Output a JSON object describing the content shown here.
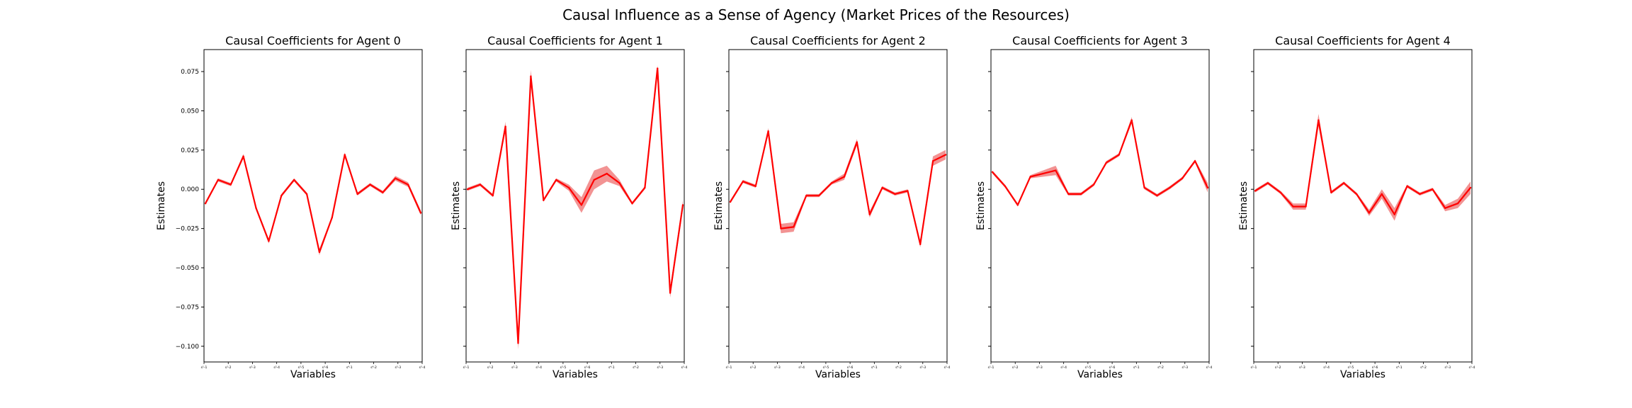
{
  "figure": {
    "title": "Causal Influence as a Sense of Agency (Market Prices of the Resources)"
  },
  "colors": {
    "line": "#ff0000",
    "band": "#f08080",
    "axes": "#000000"
  },
  "chart_data": [
    {
      "type": "line",
      "title": "Causal Coefficients for Agent 0",
      "xlabel": "Variables",
      "ylabel": "Estimates",
      "ylim": [
        -0.11,
        0.089
      ],
      "yticks": [
        0.075,
        0.05,
        0.025,
        0.0,
        -0.025,
        -0.05,
        -0.075,
        -0.1
      ],
      "ytick_labels": [
        "0.075",
        "0.050",
        "0.025",
        "0.000",
        "−0.025",
        "−0.050",
        "−0.075",
        "−0.100"
      ],
      "xtick_labels": [
        "s¹-1",
        "s¹-2",
        "s²-3",
        "s²-4",
        "s³-5",
        "s³-6",
        "s⁴-1",
        "s⁴-2",
        "s⁵-3",
        "s⁵-4"
      ],
      "grid": false,
      "values": [
        -0.009,
        0.006,
        0.003,
        0.021,
        -0.012,
        -0.033,
        -0.004,
        0.006,
        -0.003,
        -0.04,
        -0.018,
        0.022,
        -0.003,
        0.003,
        -0.002,
        0.007,
        0.003,
        -0.015
      ],
      "band": [
        0.001,
        0.001,
        0.001,
        0.0015,
        0.001,
        0.0015,
        0.001,
        0.001,
        0.001,
        0.002,
        0.001,
        0.0015,
        0.001,
        0.001,
        0.001,
        0.0015,
        0.0015,
        0.0015
      ]
    },
    {
      "type": "line",
      "title": "Causal Coefficients for Agent 1",
      "xlabel": "Variables",
      "ylabel": "Estimates",
      "ylim": [
        -0.11,
        0.089
      ],
      "xtick_labels": [
        "s¹-1",
        "s¹-2",
        "s²-3",
        "s²-4",
        "s³-5",
        "s³-6",
        "s⁴-1",
        "s⁴-2",
        "s⁵-3",
        "s⁵-4"
      ],
      "grid": false,
      "values": [
        0.0,
        0.003,
        -0.004,
        0.04,
        -0.098,
        0.072,
        -0.007,
        0.006,
        0.001,
        -0.01,
        0.006,
        0.01,
        0.004,
        -0.009,
        0.001,
        0.077,
        -0.066,
        -0.01
      ],
      "band": [
        0.001,
        0.001,
        0.001,
        0.003,
        0.004,
        0.004,
        0.001,
        0.001,
        0.002,
        0.005,
        0.006,
        0.005,
        0.002,
        0.001,
        0.001,
        0.002,
        0.003,
        0.003
      ]
    },
    {
      "type": "line",
      "title": "Causal Coefficients for Agent 2",
      "xlabel": "Variables",
      "ylabel": "Estimates",
      "ylim": [
        -0.11,
        0.089
      ],
      "xtick_labels": [
        "s¹-1",
        "s¹-2",
        "s²-3",
        "s²-4",
        "s³-5",
        "s³-6",
        "s⁴-1",
        "s⁴-2",
        "s⁵-3",
        "s⁵-4"
      ],
      "grid": false,
      "values": [
        -0.008,
        0.005,
        0.002,
        0.037,
        -0.025,
        -0.024,
        -0.004,
        -0.004,
        0.004,
        0.008,
        0.03,
        -0.016,
        0.001,
        -0.003,
        -0.001,
        -0.035,
        0.018,
        0.022
      ],
      "band": [
        0.001,
        0.001,
        0.001,
        0.002,
        0.003,
        0.003,
        0.001,
        0.001,
        0.001,
        0.002,
        0.002,
        0.002,
        0.001,
        0.001,
        0.001,
        0.002,
        0.003,
        0.003
      ]
    },
    {
      "type": "line",
      "title": "Causal Coefficients for Agent 3",
      "xlabel": "Variables",
      "ylabel": "Estimates",
      "ylim": [
        -0.11,
        0.089
      ],
      "xtick_labels": [
        "s¹-1",
        "s¹-2",
        "s²-3",
        "s²-4",
        "s³-5",
        "s³-6",
        "s⁴-1",
        "s⁴-2",
        "s⁵-3",
        "s⁵-4"
      ],
      "grid": false,
      "values": [
        0.011,
        0.002,
        -0.01,
        0.008,
        0.01,
        0.012,
        -0.003,
        -0.003,
        0.003,
        0.017,
        0.022,
        0.044,
        0.001,
        -0.004,
        0.001,
        0.007,
        0.018,
        0.001
      ],
      "band": [
        0.001,
        0.001,
        0.001,
        0.001,
        0.002,
        0.003,
        0.001,
        0.001,
        0.001,
        0.001,
        0.001,
        0.002,
        0.001,
        0.001,
        0.001,
        0.001,
        0.001,
        0.003
      ]
    },
    {
      "type": "line",
      "title": "Causal Coefficients for Agent 4",
      "xlabel": "Variables",
      "ylabel": "Estimates",
      "ylim": [
        -0.11,
        0.089
      ],
      "xtick_labels": [
        "s¹-1",
        "s¹-2",
        "s²-3",
        "s²-4",
        "s³-5",
        "s³-6",
        "s⁴-1",
        "s⁴-2",
        "s⁵-3",
        "s⁵-4"
      ],
      "grid": false,
      "values": [
        -0.001,
        0.004,
        -0.002,
        -0.011,
        -0.011,
        0.044,
        -0.002,
        0.004,
        -0.003,
        -0.015,
        -0.003,
        -0.016,
        0.002,
        -0.003,
        0.0,
        -0.012,
        -0.009,
        0.001
      ],
      "band": [
        0.001,
        0.001,
        0.001,
        0.002,
        0.002,
        0.004,
        0.001,
        0.001,
        0.001,
        0.002,
        0.003,
        0.004,
        0.001,
        0.001,
        0.001,
        0.002,
        0.003,
        0.004
      ]
    }
  ]
}
